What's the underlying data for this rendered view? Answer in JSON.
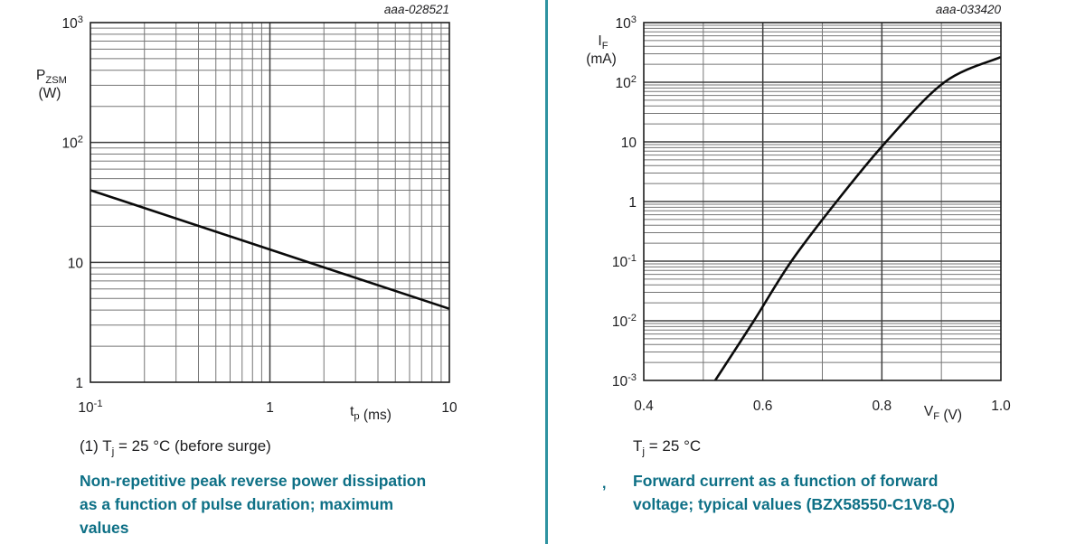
{
  "page": {
    "background": "#ffffff"
  },
  "colors": {
    "accent_text": "#0e7086",
    "divider": "#2e93a1",
    "curve": "#0a0a0a",
    "grid_minor": "#767676",
    "grid_major": "#3f3f3f",
    "plot_border": "#1f1f1f",
    "tick_text": "#1d1d1f"
  },
  "chart_data": [
    {
      "type": "line",
      "plot_id": "aaa-028521",
      "title": "Non-repetitive peak reverse power dissipation as a function of pulse duration; maximum values",
      "x_axis": {
        "scale": "log",
        "min": 0.1,
        "max": 10,
        "label_main": "t",
        "label_sub": "p",
        "label_unit": " (ms)",
        "ticks": [
          {
            "v": 0.1,
            "label": "10^-1"
          },
          {
            "v": 1,
            "label": "1"
          },
          {
            "v": 10,
            "label": "10"
          }
        ]
      },
      "y_axis": {
        "scale": "log",
        "min": 1,
        "max": 1000,
        "label_main": "P",
        "label_sub": "ZSM",
        "label_unit": "(W)",
        "ticks": [
          {
            "v": 1000,
            "label": "10^3"
          },
          {
            "v": 100,
            "label": "10^2"
          },
          {
            "v": 10,
            "label": "10"
          },
          {
            "v": 1,
            "label": "1"
          }
        ]
      },
      "series": [
        {
          "name": "PZSM maximum",
          "smooth": false,
          "points": [
            [
              0.1,
              40
            ],
            [
              10,
              4.1
            ]
          ]
        }
      ],
      "grid": "log-log, minor decades 2-9 shown",
      "legend": "none"
    },
    {
      "type": "line",
      "plot_id": "aaa-033420",
      "title": "Forward current as a function of forward voltage; typical values (BZX58550-C1V8-Q)",
      "x_axis": {
        "scale": "linear",
        "min": 0.4,
        "max": 1.0,
        "minor_step": 0.1,
        "label_main": "V",
        "label_sub": "F",
        "label_unit": " (V)",
        "ticks": [
          {
            "v": 0.4,
            "label": "0.4"
          },
          {
            "v": 0.6,
            "label": "0.6"
          },
          {
            "v": 0.8,
            "label": "0.8"
          },
          {
            "v": 1.0,
            "label": "1.0"
          }
        ]
      },
      "y_axis": {
        "scale": "log",
        "min": 0.001,
        "max": 1000,
        "label_main": "I",
        "label_sub": "F",
        "label_unit": "(mA)",
        "ticks": [
          {
            "v": 1000,
            "label": "10^3"
          },
          {
            "v": 100,
            "label": "10^2"
          },
          {
            "v": 10,
            "label": "10"
          },
          {
            "v": 1,
            "label": "1"
          },
          {
            "v": 0.1,
            "label": "10^-1"
          },
          {
            "v": 0.01,
            "label": "10^-2"
          },
          {
            "v": 0.001,
            "label": "10^-3"
          }
        ]
      },
      "series": [
        {
          "name": "IF typical",
          "smooth": true,
          "points": [
            [
              0.52,
              0.001
            ],
            [
              0.585,
              0.01
            ],
            [
              0.648,
              0.1
            ],
            [
              0.724,
              1
            ],
            [
              0.807,
              10
            ],
            [
              0.905,
              100
            ],
            [
              0.998,
              260
            ]
          ]
        }
      ],
      "grid": "semilog, x minors every 0.1 V, y minor decades 2-9 shown",
      "legend": "none"
    }
  ],
  "left_panel": {
    "condition": {
      "prefix": "(1) T",
      "sub": "j",
      "suffix": " = 25 °C (before surge)"
    },
    "caption_lines": [
      "Non-repetitive peak reverse power dissipation",
      "as a function of pulse duration; maximum",
      "values"
    ]
  },
  "right_panel": {
    "figure_marker": ",",
    "condition": {
      "prefix": "T",
      "sub": "j",
      "suffix": " = 25 °C"
    },
    "caption_lines": [
      "Forward current as a function of forward",
      "voltage; typical values (BZX58550-C1V8-Q)"
    ]
  }
}
